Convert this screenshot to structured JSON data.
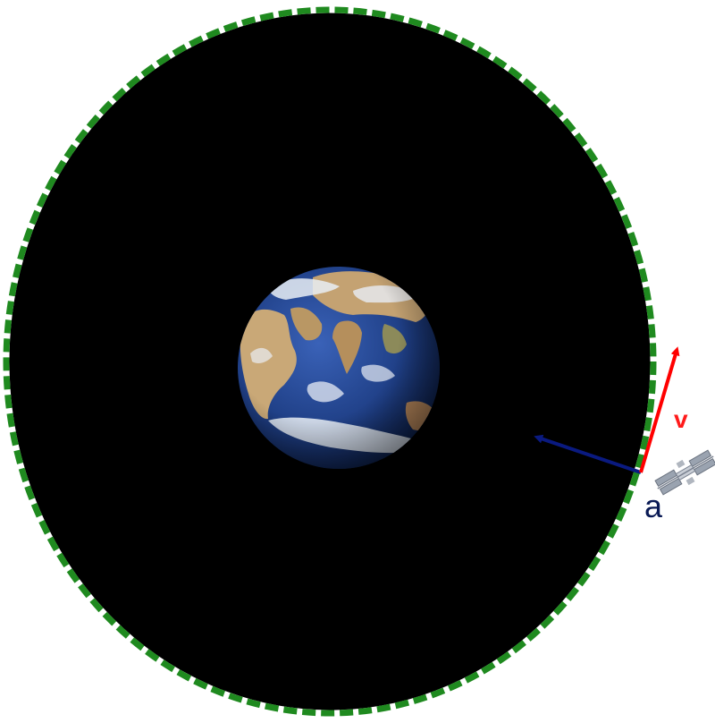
{
  "diagram": {
    "velocity_label": "v",
    "acceleration_label": "a",
    "colors": {
      "space": "#000000",
      "orbit_path": "#1f8a1f",
      "velocity_vector": "#ff0000",
      "acceleration_vector": "#0a1a80",
      "label_v": "#ff1a1a",
      "label_a": "#0a1a55",
      "ocean": "#1f3f86",
      "land": "#c9a877",
      "clouds": "#e9eef5"
    },
    "icons": {
      "planet": "earth-icon",
      "spacecraft": "satellite-icon"
    }
  }
}
